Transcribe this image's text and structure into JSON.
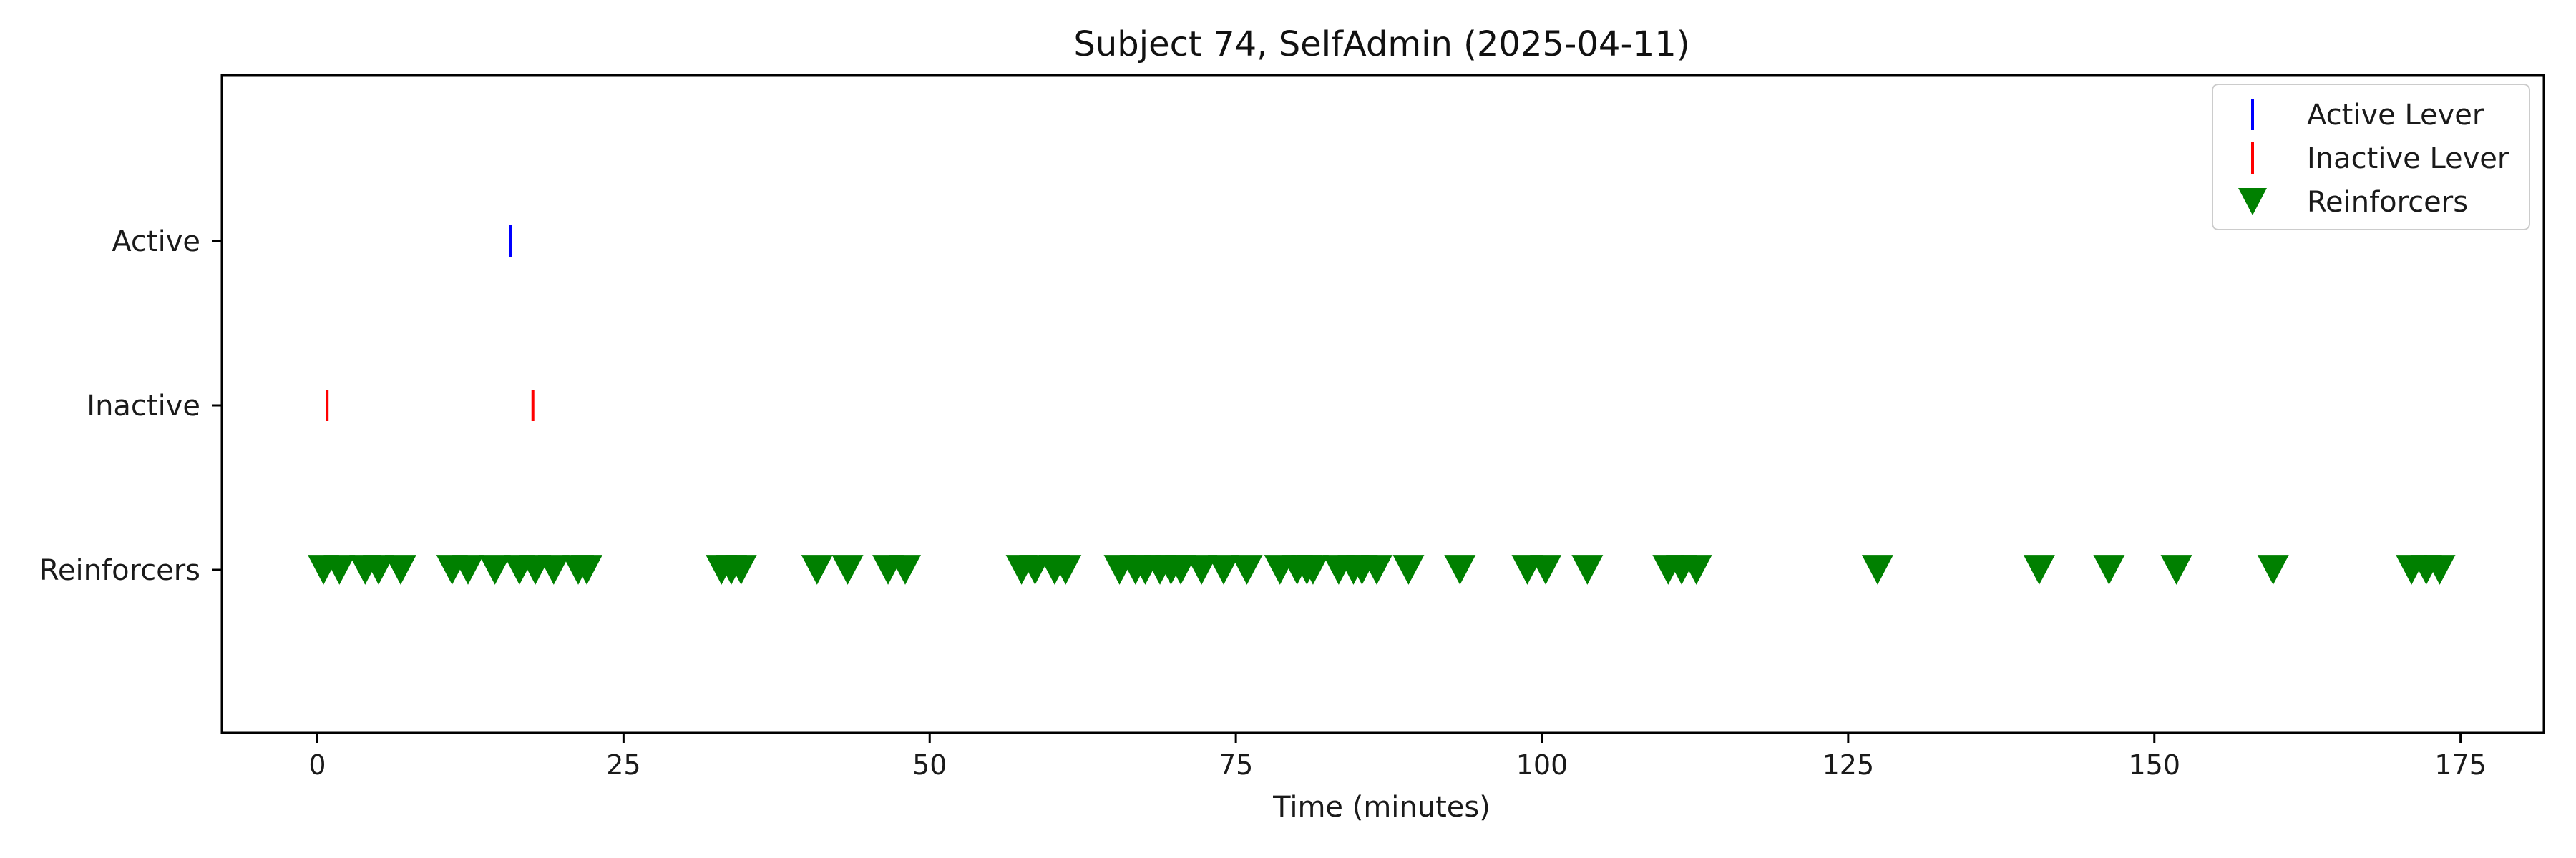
{
  "chart_data": {
    "type": "event_raster",
    "title": "Subject 74, SelfAdmin (2025-04-11)",
    "xlabel": "Time (minutes)",
    "ylabel": "",
    "xlim": [
      -7.8,
      181.8
    ],
    "xticks": [
      0,
      25,
      50,
      75,
      100,
      125,
      150,
      175
    ],
    "categories": [
      "Active",
      "Inactive",
      "Reinforcers"
    ],
    "grid": false,
    "legend_position": "top-right",
    "series": [
      {
        "name": "Active Lever",
        "category": "Active",
        "marker": "vertical-line",
        "color": "#0000ff",
        "x": [
          15.8
        ]
      },
      {
        "name": "Inactive Lever",
        "category": "Inactive",
        "marker": "vertical-line",
        "color": "#ff0000",
        "x": [
          0.8,
          17.6
        ]
      },
      {
        "name": "Reinforcers",
        "category": "Reinforcers",
        "marker": "triangle-down",
        "color": "#008000",
        "x": [
          0.5,
          1.8,
          3.9,
          5.0,
          6.8,
          11.0,
          12.3,
          14.5,
          16.5,
          17.8,
          19.3,
          21.3,
          22.0,
          33.0,
          33.8,
          34.6,
          40.8,
          43.3,
          46.6,
          48.0,
          57.5,
          58.6,
          60.2,
          61.1,
          65.5,
          66.8,
          67.6,
          68.8,
          69.7,
          70.5,
          72.2,
          74.0,
          75.9,
          78.6,
          80.0,
          80.8,
          81.3,
          83.4,
          84.6,
          85.3,
          86.5,
          89.1,
          93.3,
          98.8,
          100.3,
          103.7,
          110.3,
          111.4,
          112.6,
          127.4,
          140.6,
          146.3,
          151.8,
          159.7,
          171.0,
          172.2,
          173.3
        ]
      }
    ]
  }
}
